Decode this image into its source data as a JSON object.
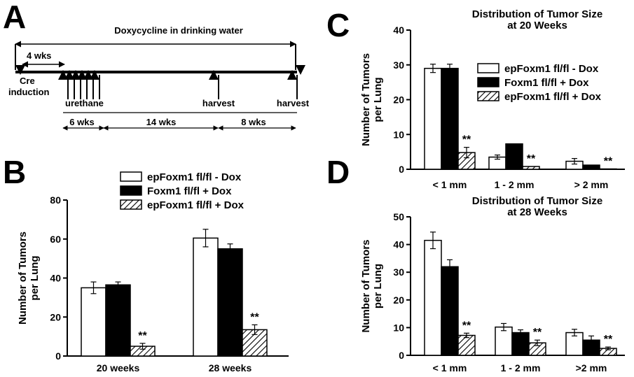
{
  "panels": {
    "a": "A",
    "b": "B",
    "c": "C",
    "d": "D"
  },
  "timeline": {
    "top_label": "Doxycycline in drinking water",
    "cre_line1": "Cre",
    "cre_line2": "induction",
    "urethane": "urethane",
    "harvest_1": "harvest",
    "harvest_2": "harvest",
    "wks_4": "4 wks",
    "wks_6": "6 wks",
    "wks_14": "14 wks",
    "wks_8": "8 wks"
  },
  "legend": {
    "b": [
      "epFoxm1 fl/fl - Dox",
      "Foxm1 fl/fl + Dox",
      "epFoxm1 fl/fl + Dox"
    ],
    "c": [
      "epFoxm1 fl/fl - Dox",
      "Foxm1 fl/fl + Dox",
      "epFoxm1 fl/fl + Dox"
    ]
  },
  "colors": {
    "white_bar": "#ffffff",
    "black_bar": "#000000",
    "hatch_bar": "hatched"
  },
  "chart_data": [
    {
      "panel": "B",
      "type": "bar",
      "title": "",
      "xlabel": "",
      "ylabel_line1": "Number of Tumors",
      "ylabel_line2": "per Lung",
      "ylim": [
        0,
        80
      ],
      "yticks": [
        0,
        20,
        40,
        60,
        80
      ],
      "categories": [
        "20 weeks",
        "28 weeks"
      ],
      "series": [
        {
          "name": "epFoxm1 fl/fl - Dox",
          "fill": "white",
          "values": [
            35,
            60.5
          ],
          "errors": [
            3,
            4.5
          ]
        },
        {
          "name": "Foxm1 fl/fl + Dox",
          "fill": "black",
          "values": [
            36.5,
            55
          ],
          "errors": [
            1.5,
            2.5
          ]
        },
        {
          "name": "epFoxm1 fl/fl + Dox",
          "fill": "hatch",
          "values": [
            5,
            13.5
          ],
          "errors": [
            1.5,
            2.5
          ]
        }
      ],
      "significance": [
        "**",
        "**"
      ]
    },
    {
      "panel": "C",
      "type": "bar",
      "title_line1": "Distribution of Tumor Size",
      "title_line2": "at 20 Weeks",
      "xlabel": "",
      "ylabel_line1": "Number of Tumors",
      "ylabel_line2": "per Lung",
      "ylim": [
        0,
        40
      ],
      "yticks": [
        0,
        10,
        20,
        30,
        40
      ],
      "categories": [
        "< 1 mm",
        "1 - 2 mm",
        "> 2 mm"
      ],
      "series": [
        {
          "name": "epFoxm1 fl/fl - Dox",
          "fill": "white",
          "values": [
            29,
            3.5,
            2.3
          ],
          "errors": [
            1.2,
            0.6,
            0.8
          ]
        },
        {
          "name": "Foxm1 fl/fl + Dox",
          "fill": "black",
          "values": [
            29,
            7.3,
            1.2
          ],
          "errors": [
            1.2,
            0,
            0
          ]
        },
        {
          "name": "epFoxm1 fl/fl + Dox",
          "fill": "hatch",
          "values": [
            4.8,
            0.8,
            0.1
          ],
          "errors": [
            1.5,
            0,
            0
          ]
        }
      ],
      "significance": [
        "**",
        "**",
        "**"
      ]
    },
    {
      "panel": "D",
      "type": "bar",
      "title_line1": "Distribution of Tumor Size",
      "title_line2": "at 28 Weeks",
      "xlabel": "",
      "ylabel_line1": "Number of Tumors",
      "ylabel_line2": "per Lung",
      "ylim": [
        0,
        50
      ],
      "yticks": [
        0,
        10,
        20,
        30,
        40,
        50
      ],
      "categories": [
        "< 1 mm",
        "1 - 2 mm",
        ">2 mm"
      ],
      "series": [
        {
          "name": "epFoxm1 fl/fl - Dox",
          "fill": "white",
          "values": [
            41.5,
            10.2,
            8.2
          ],
          "errors": [
            3,
            1.3,
            1.2
          ]
        },
        {
          "name": "Foxm1 fl/fl + Dox",
          "fill": "black",
          "values": [
            32,
            8.2,
            5.5
          ],
          "errors": [
            2.5,
            1,
            1.5
          ]
        },
        {
          "name": "epFoxm1 fl/fl + Dox",
          "fill": "hatch",
          "values": [
            7.2,
            4.5,
            2.5
          ],
          "errors": [
            0.8,
            1,
            0.5
          ]
        }
      ],
      "significance": [
        "**",
        "**",
        "**"
      ]
    }
  ]
}
